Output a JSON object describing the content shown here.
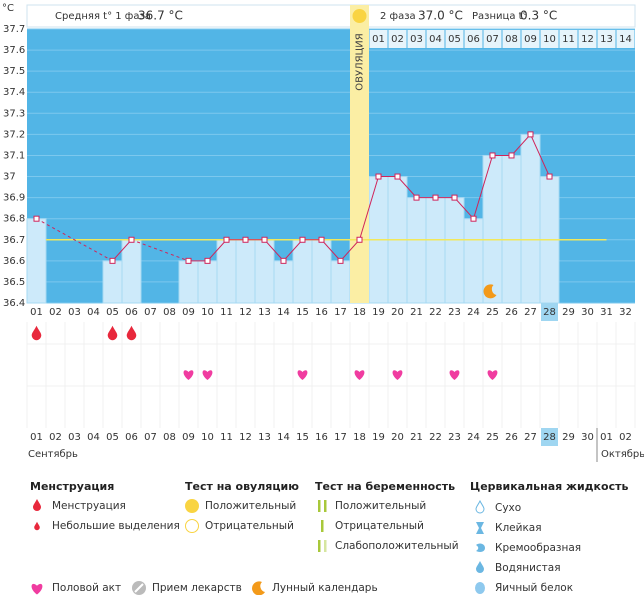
{
  "chart_data": {
    "type": "line",
    "y_unit": "°C",
    "header": {
      "phase1_label": "Средняя t° 1 фаза",
      "phase1_value": "36.7 °C",
      "phase2_label": "2 фаза",
      "phase2_value": "37.0 °C",
      "diff_label": "Разница t°",
      "diff_value": "0.3 °C"
    },
    "ovulation_label": "ОВУЛЯЦИЯ",
    "ovulation_day": "18",
    "categories": [
      "01",
      "02",
      "03",
      "04",
      "05",
      "06",
      "07",
      "08",
      "09",
      "10",
      "11",
      "12",
      "13",
      "14",
      "15",
      "16",
      "17",
      "18",
      "19",
      "20",
      "21",
      "22",
      "23",
      "24",
      "25",
      "26",
      "27",
      "28",
      "29",
      "30",
      "31",
      "32"
    ],
    "phase2_days": [
      "01",
      "02",
      "03",
      "04",
      "05",
      "06",
      "07",
      "08",
      "09",
      "10",
      "11",
      "12",
      "13",
      "14"
    ],
    "series": [
      {
        "color": "#d0245a",
        "values": [
          36.8,
          null,
          null,
          null,
          36.6,
          36.7,
          null,
          null,
          36.6,
          36.6,
          36.7,
          36.7,
          36.7,
          36.6,
          36.7,
          36.7,
          36.6,
          36.7,
          37.0,
          37.0,
          36.9,
          36.9,
          36.9,
          36.8,
          37.1,
          37.1,
          37.2,
          37.0,
          null,
          null,
          null,
          null
        ]
      }
    ],
    "coverline": 36.7,
    "coverline_color": "#f2e85a",
    "ylim": [
      36.4,
      37.7
    ],
    "yticks": [
      36.4,
      36.5,
      36.6,
      36.7,
      36.8,
      36.9,
      37,
      37.1,
      37.2,
      37.3,
      37.4,
      37.5,
      37.6,
      37.7
    ],
    "grid": true,
    "today": "28",
    "menstruation_days": [
      "01",
      "05",
      "06"
    ],
    "intercourse_days": [
      "09",
      "10",
      "15",
      "18",
      "20",
      "23",
      "25"
    ],
    "moon_days": [
      "25"
    ],
    "calendar": {
      "days": [
        "01",
        "02",
        "03",
        "04",
        "05",
        "06",
        "07",
        "08",
        "09",
        "10",
        "11",
        "12",
        "13",
        "14",
        "15",
        "16",
        "17",
        "18",
        "19",
        "20",
        "21",
        "22",
        "23",
        "24",
        "25",
        "26",
        "27",
        "28",
        "29",
        "30",
        "01",
        "02"
      ],
      "weekend": [
        true,
        false,
        false,
        false,
        false,
        false,
        true,
        true,
        false,
        false,
        false,
        false,
        false,
        true,
        true,
        false,
        false,
        false,
        false,
        false,
        true,
        true,
        false,
        false,
        false,
        false,
        false,
        true,
        true,
        false,
        false,
        false
      ],
      "months": [
        "Сентябрь",
        "Октябрь"
      ]
    }
  },
  "legend": {
    "menstruation": {
      "title": "Менструация",
      "items": [
        "Менструация",
        "Небольшие выделения"
      ]
    },
    "ovulation_test": {
      "title": "Тест на овуляцию",
      "items": [
        "Положительный",
        "Отрицательный"
      ]
    },
    "pregnancy_test": {
      "title": "Тест на беременность",
      "items": [
        "Положительный",
        "Отрицательный",
        "Слабоположительный"
      ]
    },
    "cervical": {
      "title": "Цервикальная жидкость",
      "items": [
        "Сухо",
        "Клейкая",
        "Кремообразная",
        "Водянистая",
        "Яичный белок"
      ]
    },
    "other": [
      "Половой акт",
      "Прием лекарств",
      "Лунный календарь"
    ]
  }
}
